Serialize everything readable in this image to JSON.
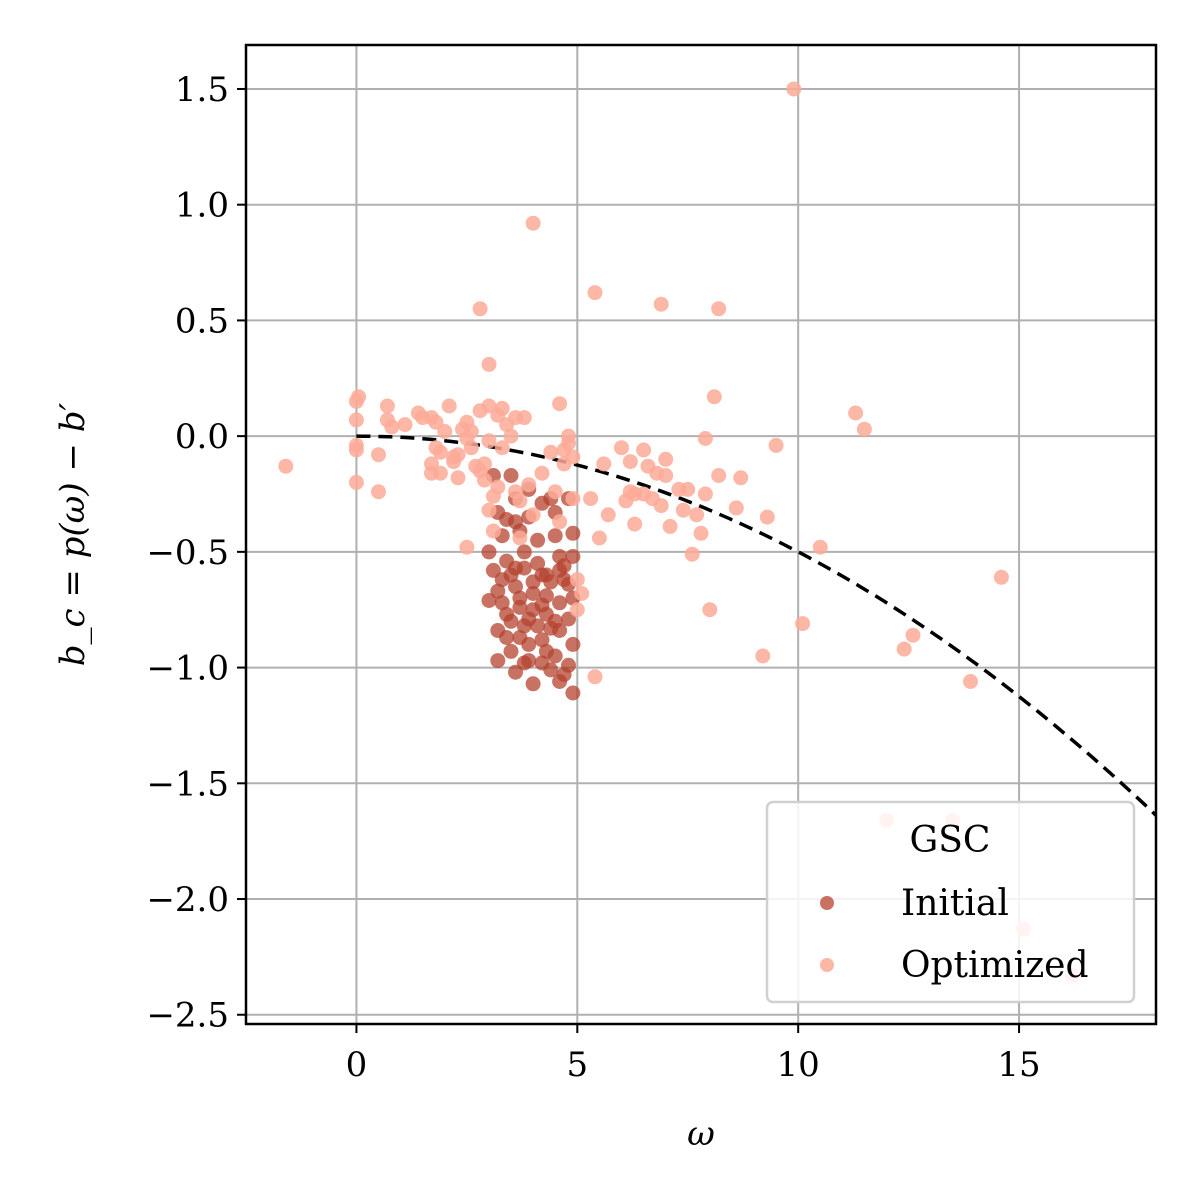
{
  "chart_data": {
    "type": "scatter",
    "xlabel": "ω",
    "ylabel": "b_c = p(ω) − b′",
    "xlim": [
      -2.5,
      18.1
    ],
    "ylim": [
      -2.54,
      1.69
    ],
    "xticks": [
      0,
      5,
      10,
      15
    ],
    "yticks": [
      1.5,
      1.0,
      0.5,
      0.0,
      -0.5,
      -1.0,
      -1.5,
      -2.0,
      -2.5
    ],
    "xtick_labels": [
      "0",
      "5",
      "10",
      "15"
    ],
    "ytick_labels": [
      "1.5",
      "1.0",
      "0.5",
      "0.0",
      "−0.5",
      "−1.0",
      "−1.5",
      "−2.0",
      "−2.5"
    ],
    "grid": true,
    "legend": {
      "title": "GSC",
      "placement": "lower right"
    },
    "curve": {
      "style": "dashed",
      "color": "#000000",
      "coefficient": -0.005,
      "x_range": [
        0,
        18.1
      ]
    },
    "series": [
      {
        "name": "Initial",
        "color": "#b5432f",
        "points": [
          [
            3.1,
            -0.17
          ],
          [
            3.5,
            -0.17
          ],
          [
            3.2,
            -0.33
          ],
          [
            3.4,
            -0.36
          ],
          [
            3.6,
            -0.27
          ],
          [
            3.9,
            -0.23
          ],
          [
            4.2,
            -0.29
          ],
          [
            4.4,
            -0.27
          ],
          [
            4.5,
            -0.33
          ],
          [
            4.8,
            -0.27
          ],
          [
            3.0,
            -0.5
          ],
          [
            3.1,
            -0.58
          ],
          [
            3.3,
            -0.43
          ],
          [
            3.7,
            -0.41
          ],
          [
            3.9,
            -0.35
          ],
          [
            4.1,
            -0.45
          ],
          [
            4.5,
            -0.43
          ],
          [
            4.6,
            -0.52
          ],
          [
            4.9,
            -0.42
          ],
          [
            4.9,
            -0.52
          ],
          [
            3.0,
            -0.71
          ],
          [
            3.2,
            -0.67
          ],
          [
            3.3,
            -0.62
          ],
          [
            3.4,
            -0.77
          ],
          [
            3.6,
            -0.65
          ],
          [
            3.8,
            -0.57
          ],
          [
            4.0,
            -0.63
          ],
          [
            4.2,
            -0.73
          ],
          [
            4.3,
            -0.6
          ],
          [
            4.6,
            -0.58
          ],
          [
            4.7,
            -0.62
          ],
          [
            4.8,
            -0.64
          ],
          [
            4.9,
            -0.7
          ],
          [
            3.2,
            -0.84
          ],
          [
            3.5,
            -0.8
          ],
          [
            3.7,
            -0.87
          ],
          [
            3.9,
            -0.79
          ],
          [
            4.1,
            -0.82
          ],
          [
            4.2,
            -0.88
          ],
          [
            4.4,
            -0.83
          ],
          [
            4.6,
            -0.84
          ],
          [
            4.8,
            -0.79
          ],
          [
            4.9,
            -0.9
          ],
          [
            3.2,
            -0.97
          ],
          [
            3.5,
            -0.93
          ],
          [
            3.6,
            -1.02
          ],
          [
            3.8,
            -0.98
          ],
          [
            4.0,
            -1.07
          ],
          [
            4.3,
            -0.93
          ],
          [
            4.4,
            -1.01
          ],
          [
            4.6,
            -1.06
          ],
          [
            4.7,
            -1.03
          ],
          [
            4.9,
            -1.11
          ],
          [
            3.7,
            -0.7
          ],
          [
            4.0,
            -0.75
          ],
          [
            4.3,
            -0.69
          ],
          [
            4.5,
            -0.8
          ],
          [
            3.4,
            -0.54
          ],
          [
            3.8,
            -0.5
          ],
          [
            4.1,
            -0.55
          ],
          [
            4.4,
            -0.63
          ],
          [
            4.7,
            -0.56
          ],
          [
            3.6,
            -0.37
          ],
          [
            3.4,
            -0.87
          ],
          [
            3.7,
            -0.74
          ],
          [
            4.2,
            -0.98
          ],
          [
            3.9,
            -0.9
          ],
          [
            4.5,
            -0.95
          ],
          [
            3.3,
            -0.72
          ],
          [
            4.8,
            -0.99
          ],
          [
            3.5,
            -0.6
          ],
          [
            4.0,
            -0.68
          ],
          [
            3.8,
            -0.82
          ],
          [
            4.3,
            -0.77
          ],
          [
            3.6,
            -0.57
          ],
          [
            4.6,
            -0.72
          ],
          [
            3.9,
            -0.97
          ],
          [
            4.2,
            -0.6
          ]
        ]
      },
      {
        "name": "Optimized",
        "color": "#fdaa98",
        "points": [
          [
            -1.6,
            -0.13
          ],
          [
            0.0,
            0.15
          ],
          [
            0.05,
            0.17
          ],
          [
            0.0,
            0.07
          ],
          [
            0.0,
            -0.04
          ],
          [
            0.0,
            -0.06
          ],
          [
            0.0,
            -0.2
          ],
          [
            0.5,
            -0.08
          ],
          [
            0.5,
            -0.24
          ],
          [
            0.7,
            0.13
          ],
          [
            0.7,
            0.07
          ],
          [
            0.8,
            0.04
          ],
          [
            1.1,
            0.05
          ],
          [
            1.4,
            0.1
          ],
          [
            1.5,
            0.08
          ],
          [
            1.7,
            0.08
          ],
          [
            1.7,
            -0.12
          ],
          [
            1.7,
            -0.16
          ],
          [
            1.8,
            0.06
          ],
          [
            1.8,
            -0.05
          ],
          [
            1.9,
            -0.07
          ],
          [
            1.9,
            -0.16
          ],
          [
            2.0,
            0.02
          ],
          [
            2.1,
            0.13
          ],
          [
            2.2,
            -0.09
          ],
          [
            2.2,
            -0.11
          ],
          [
            2.3,
            -0.08
          ],
          [
            2.3,
            -0.18
          ],
          [
            2.4,
            0.03
          ],
          [
            2.5,
            -0.01
          ],
          [
            2.5,
            0.06
          ],
          [
            2.6,
            0.02
          ],
          [
            2.6,
            -0.05
          ],
          [
            2.7,
            -0.13
          ],
          [
            2.8,
            0.11
          ],
          [
            2.8,
            -0.15
          ],
          [
            2.9,
            -0.19
          ],
          [
            2.9,
            -0.12
          ],
          [
            3.0,
            0.13
          ],
          [
            3.0,
            -0.02
          ],
          [
            3.0,
            -0.32
          ],
          [
            3.1,
            -0.26
          ],
          [
            3.2,
            0.09
          ],
          [
            3.2,
            -0.22
          ],
          [
            3.3,
            -0.05
          ],
          [
            3.4,
            0.05
          ],
          [
            3.5,
            -0.0
          ],
          [
            3.6,
            0.08
          ],
          [
            3.7,
            -0.28
          ],
          [
            3.7,
            -0.44
          ],
          [
            3.8,
            0.08
          ],
          [
            3.9,
            -0.21
          ],
          [
            4.0,
            -0.34
          ],
          [
            4.2,
            -0.16
          ],
          [
            4.4,
            -0.07
          ],
          [
            4.5,
            -0.24
          ],
          [
            4.6,
            0.14
          ],
          [
            4.7,
            -0.06
          ],
          [
            4.7,
            -0.12
          ],
          [
            4.8,
            0.0
          ],
          [
            4.8,
            -0.03
          ],
          [
            4.9,
            -0.09
          ],
          [
            5.0,
            -0.62
          ],
          [
            5.0,
            -0.75
          ],
          [
            5.3,
            -0.27
          ],
          [
            5.4,
            -1.04
          ],
          [
            5.5,
            -0.44
          ],
          [
            5.6,
            -0.12
          ],
          [
            5.7,
            -0.34
          ],
          [
            6.0,
            -0.05
          ],
          [
            6.1,
            -0.28
          ],
          [
            6.2,
            -0.11
          ],
          [
            6.3,
            -0.25
          ],
          [
            6.3,
            -0.38
          ],
          [
            6.5,
            -0.06
          ],
          [
            6.5,
            -0.25
          ],
          [
            6.6,
            -0.13
          ],
          [
            6.7,
            -0.27
          ],
          [
            6.8,
            -0.16
          ],
          [
            6.9,
            -0.3
          ],
          [
            7.0,
            -0.1
          ],
          [
            7.0,
            -0.17
          ],
          [
            7.1,
            -0.39
          ],
          [
            7.3,
            -0.23
          ],
          [
            7.4,
            -0.32
          ],
          [
            7.5,
            -0.23
          ],
          [
            7.6,
            -0.51
          ],
          [
            7.7,
            -0.34
          ],
          [
            7.8,
            -0.42
          ],
          [
            7.9,
            -0.01
          ],
          [
            7.9,
            -0.25
          ],
          [
            8.0,
            -0.75
          ],
          [
            8.1,
            0.17
          ],
          [
            8.2,
            -0.17
          ],
          [
            8.6,
            -0.31
          ],
          [
            8.7,
            -0.18
          ],
          [
            9.2,
            -0.95
          ],
          [
            9.3,
            -0.35
          ],
          [
            9.5,
            -0.04
          ],
          [
            10.1,
            -0.81
          ],
          [
            10.5,
            -0.48
          ],
          [
            11.3,
            0.1
          ],
          [
            11.5,
            0.03
          ],
          [
            12.4,
            -0.92
          ],
          [
            12.6,
            -0.86
          ],
          [
            12.0,
            -1.66
          ],
          [
            13.5,
            -1.66
          ],
          [
            13.9,
            -1.06
          ],
          [
            14.6,
            -0.61
          ],
          [
            15.1,
            -2.13
          ],
          [
            16.2,
            -2.33
          ],
          [
            2.8,
            0.55
          ],
          [
            3.0,
            0.31
          ],
          [
            4.0,
            0.92
          ],
          [
            5.4,
            0.62
          ],
          [
            6.9,
            0.57
          ],
          [
            8.2,
            0.55
          ],
          [
            9.9,
            1.5
          ],
          [
            2.5,
            -0.48
          ],
          [
            3.3,
            0.12
          ],
          [
            3.6,
            -0.24
          ],
          [
            4.9,
            -0.27
          ],
          [
            6.2,
            -0.24
          ],
          [
            5.1,
            -0.68
          ],
          [
            4.6,
            -0.37
          ],
          [
            3.1,
            -0.41
          ]
        ]
      }
    ]
  }
}
